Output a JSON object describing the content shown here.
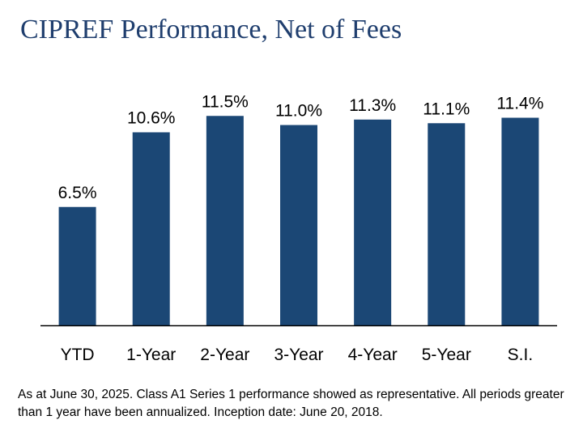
{
  "chart_data": {
    "type": "bar",
    "title": "CIPREF Performance, Net of Fees",
    "categories": [
      "YTD",
      "1-Year",
      "2-Year",
      "3-Year",
      "4-Year",
      "5-Year",
      "S.I."
    ],
    "values": [
      6.5,
      10.6,
      11.5,
      11.0,
      11.3,
      11.1,
      11.4
    ],
    "data_labels": [
      "6.5%",
      "10.6%",
      "11.5%",
      "11.0%",
      "11.3%",
      "11.1%",
      "11.4%"
    ],
    "xlabel": "",
    "ylabel": "",
    "ylim": [
      0,
      12.5
    ],
    "grid": false,
    "bar_color": "#1b4775",
    "axis_color": "#000000"
  },
  "footnote": "As at June 30, 2025. Class A1 Series 1 performance showed as representative. All periods greater than 1 year have been annualized. Inception date: June 20, 2018."
}
